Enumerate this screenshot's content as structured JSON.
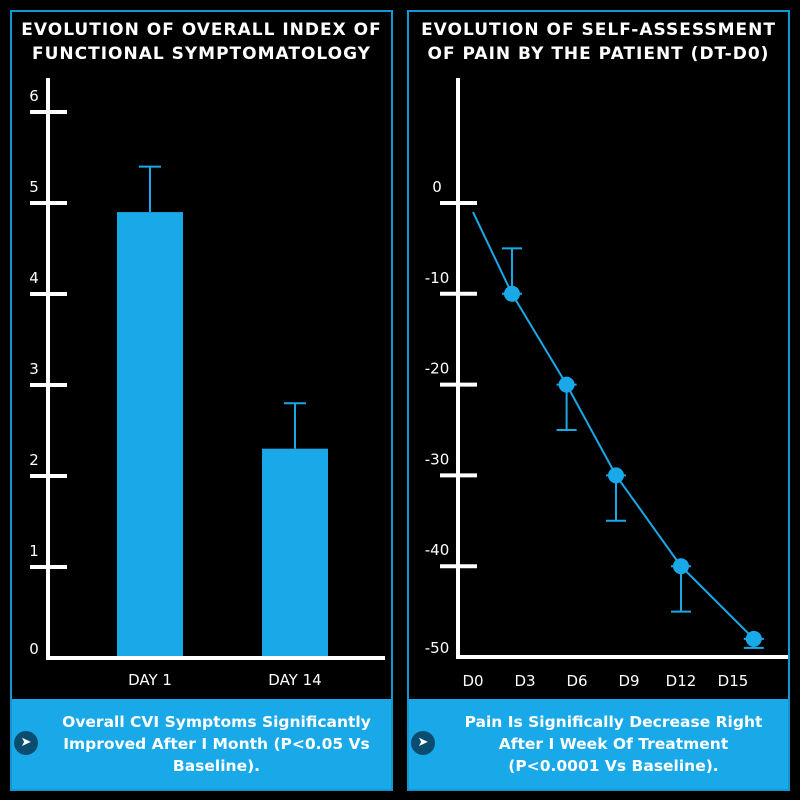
{
  "colors": {
    "accent": "#1aa9e8",
    "border": "#1596d3",
    "background": "#000000",
    "axis": "#ffffff"
  },
  "left_panel": {
    "title": "Evolution of overall index of functional symptomatology",
    "caption": "Overall CVI Symptoms Significantly Improved After I Month (P<0.05 Vs Baseline).",
    "caption_icon": "arrow-right-icon"
  },
  "right_panel": {
    "title": "Evolution of self-assessment of pain by the patient (DT-D0)",
    "caption": "Pain Is Significally Decrease Right After I Week Of Treatment (P<0.0001 Vs Baseline).",
    "caption_icon": "arrow-right-icon"
  },
  "chart_data": [
    {
      "type": "bar",
      "categories": [
        "DAY 1",
        "DAY 14"
      ],
      "values": [
        4.9,
        2.3
      ],
      "error_upper": [
        5.4,
        2.8
      ],
      "ylim": [
        0,
        6
      ],
      "yticks": [
        "0",
        "1",
        "2",
        "3",
        "4",
        "5",
        "6"
      ],
      "grid": false
    },
    {
      "type": "line",
      "x": [
        "D0",
        "D3",
        "D6",
        "D9",
        "D12",
        "D15"
      ],
      "points": [
        {
          "x": 0.0,
          "y": -1
        },
        {
          "x": 0.75,
          "y": -10
        },
        {
          "x": 1.8,
          "y": -20
        },
        {
          "x": 2.75,
          "y": -30
        },
        {
          "x": 4.0,
          "y": -40
        },
        {
          "x": 5.4,
          "y": -48
        }
      ],
      "error_bars": [
        {
          "x": 0.75,
          "low": -10,
          "high": -5
        },
        {
          "x": 1.8,
          "low": -25,
          "high": -20
        },
        {
          "x": 2.75,
          "low": -35,
          "high": -30
        },
        {
          "x": 4.0,
          "low": -45,
          "high": -40
        },
        {
          "x": 5.4,
          "low": -49,
          "high": -48
        }
      ],
      "ylim": [
        -50,
        0
      ],
      "yticks": [
        "0",
        "-10",
        "-20",
        "-30",
        "-40",
        "-50"
      ],
      "grid": false
    }
  ]
}
